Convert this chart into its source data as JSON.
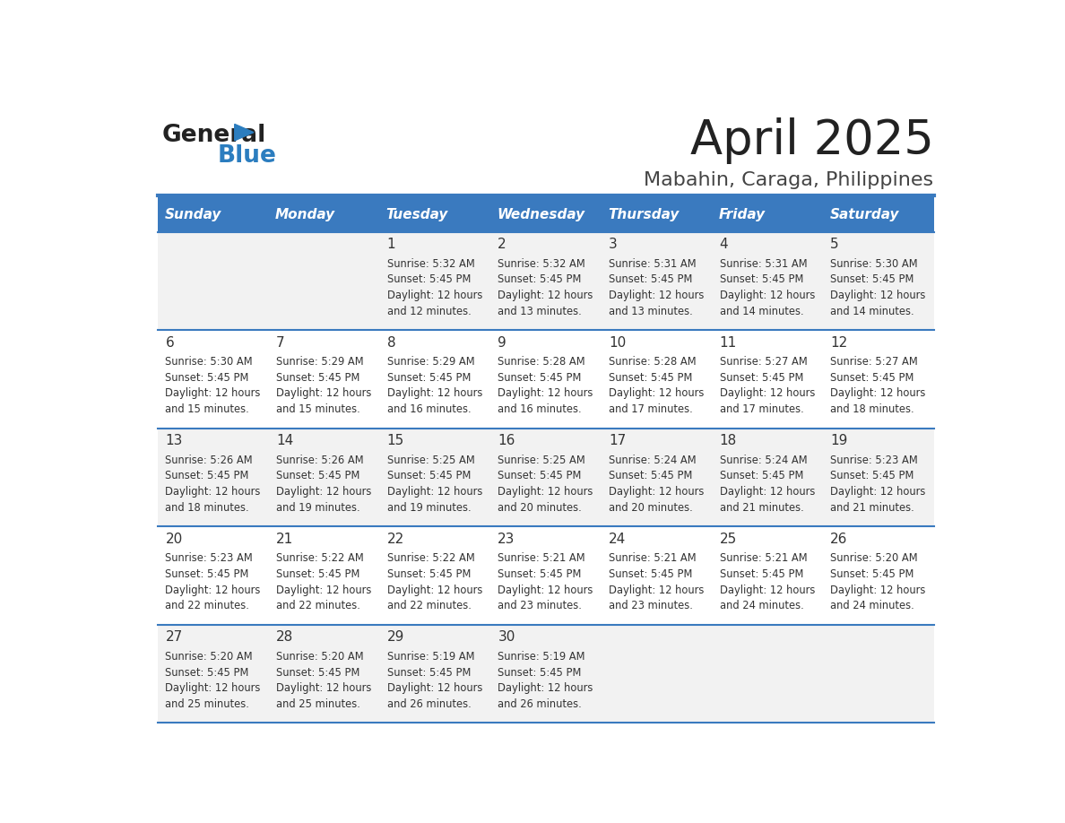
{
  "title": "April 2025",
  "subtitle": "Mabahin, Caraga, Philippines",
  "days_of_week": [
    "Sunday",
    "Monday",
    "Tuesday",
    "Wednesday",
    "Thursday",
    "Friday",
    "Saturday"
  ],
  "header_bg_color": "#3a7abf",
  "header_text_color": "#ffffff",
  "odd_row_bg": "#f2f2f2",
  "even_row_bg": "#ffffff",
  "divider_color": "#3a7abf",
  "cell_text_color": "#333333",
  "title_color": "#222222",
  "subtitle_color": "#444444",
  "logo_general_color": "#222222",
  "logo_blue_color": "#2b7dbf",
  "calendar_data": [
    {
      "day": 1,
      "col": 2,
      "row": 0,
      "sunrise": "5:32 AM",
      "sunset": "5:45 PM",
      "daylight_min": "12 minutes."
    },
    {
      "day": 2,
      "col": 3,
      "row": 0,
      "sunrise": "5:32 AM",
      "sunset": "5:45 PM",
      "daylight_min": "13 minutes."
    },
    {
      "day": 3,
      "col": 4,
      "row": 0,
      "sunrise": "5:31 AM",
      "sunset": "5:45 PM",
      "daylight_min": "13 minutes."
    },
    {
      "day": 4,
      "col": 5,
      "row": 0,
      "sunrise": "5:31 AM",
      "sunset": "5:45 PM",
      "daylight_min": "14 minutes."
    },
    {
      "day": 5,
      "col": 6,
      "row": 0,
      "sunrise": "5:30 AM",
      "sunset": "5:45 PM",
      "daylight_min": "14 minutes."
    },
    {
      "day": 6,
      "col": 0,
      "row": 1,
      "sunrise": "5:30 AM",
      "sunset": "5:45 PM",
      "daylight_min": "15 minutes."
    },
    {
      "day": 7,
      "col": 1,
      "row": 1,
      "sunrise": "5:29 AM",
      "sunset": "5:45 PM",
      "daylight_min": "15 minutes."
    },
    {
      "day": 8,
      "col": 2,
      "row": 1,
      "sunrise": "5:29 AM",
      "sunset": "5:45 PM",
      "daylight_min": "16 minutes."
    },
    {
      "day": 9,
      "col": 3,
      "row": 1,
      "sunrise": "5:28 AM",
      "sunset": "5:45 PM",
      "daylight_min": "16 minutes."
    },
    {
      "day": 10,
      "col": 4,
      "row": 1,
      "sunrise": "5:28 AM",
      "sunset": "5:45 PM",
      "daylight_min": "17 minutes."
    },
    {
      "day": 11,
      "col": 5,
      "row": 1,
      "sunrise": "5:27 AM",
      "sunset": "5:45 PM",
      "daylight_min": "17 minutes."
    },
    {
      "day": 12,
      "col": 6,
      "row": 1,
      "sunrise": "5:27 AM",
      "sunset": "5:45 PM",
      "daylight_min": "18 minutes."
    },
    {
      "day": 13,
      "col": 0,
      "row": 2,
      "sunrise": "5:26 AM",
      "sunset": "5:45 PM",
      "daylight_min": "18 minutes."
    },
    {
      "day": 14,
      "col": 1,
      "row": 2,
      "sunrise": "5:26 AM",
      "sunset": "5:45 PM",
      "daylight_min": "19 minutes."
    },
    {
      "day": 15,
      "col": 2,
      "row": 2,
      "sunrise": "5:25 AM",
      "sunset": "5:45 PM",
      "daylight_min": "19 minutes."
    },
    {
      "day": 16,
      "col": 3,
      "row": 2,
      "sunrise": "5:25 AM",
      "sunset": "5:45 PM",
      "daylight_min": "20 minutes."
    },
    {
      "day": 17,
      "col": 4,
      "row": 2,
      "sunrise": "5:24 AM",
      "sunset": "5:45 PM",
      "daylight_min": "20 minutes."
    },
    {
      "day": 18,
      "col": 5,
      "row": 2,
      "sunrise": "5:24 AM",
      "sunset": "5:45 PM",
      "daylight_min": "21 minutes."
    },
    {
      "day": 19,
      "col": 6,
      "row": 2,
      "sunrise": "5:23 AM",
      "sunset": "5:45 PM",
      "daylight_min": "21 minutes."
    },
    {
      "day": 20,
      "col": 0,
      "row": 3,
      "sunrise": "5:23 AM",
      "sunset": "5:45 PM",
      "daylight_min": "22 minutes."
    },
    {
      "day": 21,
      "col": 1,
      "row": 3,
      "sunrise": "5:22 AM",
      "sunset": "5:45 PM",
      "daylight_min": "22 minutes."
    },
    {
      "day": 22,
      "col": 2,
      "row": 3,
      "sunrise": "5:22 AM",
      "sunset": "5:45 PM",
      "daylight_min": "22 minutes."
    },
    {
      "day": 23,
      "col": 3,
      "row": 3,
      "sunrise": "5:21 AM",
      "sunset": "5:45 PM",
      "daylight_min": "23 minutes."
    },
    {
      "day": 24,
      "col": 4,
      "row": 3,
      "sunrise": "5:21 AM",
      "sunset": "5:45 PM",
      "daylight_min": "23 minutes."
    },
    {
      "day": 25,
      "col": 5,
      "row": 3,
      "sunrise": "5:21 AM",
      "sunset": "5:45 PM",
      "daylight_min": "24 minutes."
    },
    {
      "day": 26,
      "col": 6,
      "row": 3,
      "sunrise": "5:20 AM",
      "sunset": "5:45 PM",
      "daylight_min": "24 minutes."
    },
    {
      "day": 27,
      "col": 0,
      "row": 4,
      "sunrise": "5:20 AM",
      "sunset": "5:45 PM",
      "daylight_min": "25 minutes."
    },
    {
      "day": 28,
      "col": 1,
      "row": 4,
      "sunrise": "5:20 AM",
      "sunset": "5:45 PM",
      "daylight_min": "25 minutes."
    },
    {
      "day": 29,
      "col": 2,
      "row": 4,
      "sunrise": "5:19 AM",
      "sunset": "5:45 PM",
      "daylight_min": "26 minutes."
    },
    {
      "day": 30,
      "col": 3,
      "row": 4,
      "sunrise": "5:19 AM",
      "sunset": "5:45 PM",
      "daylight_min": "26 minutes."
    }
  ]
}
